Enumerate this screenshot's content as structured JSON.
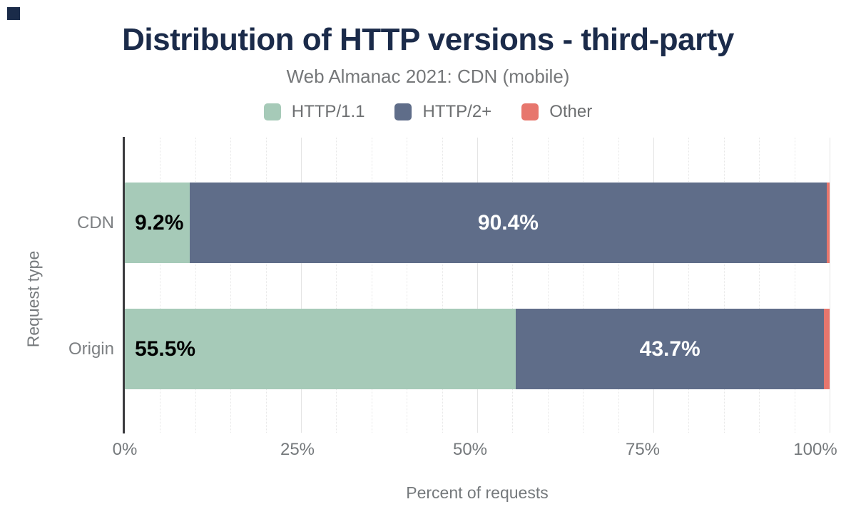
{
  "corner_mark": {
    "color": "#1a2b49"
  },
  "header": {
    "title": "Distribution of HTTP versions - third-party",
    "subtitle": "Web Almanac 2021: CDN (mobile)",
    "title_color": "#1b2b4a",
    "subtitle_color": "#757779"
  },
  "legend": {
    "text_color": "#6d6f71"
  },
  "chart_data": {
    "type": "bar",
    "orientation": "horizontal",
    "stacked": true,
    "title": "Distribution of HTTP versions - third-party",
    "subtitle": "Web Almanac 2021: CDN (mobile)",
    "categories": [
      "CDN",
      "Origin"
    ],
    "series": [
      {
        "name": "HTTP/1.1",
        "color": "#a6cab8",
        "values": [
          9.2,
          55.5
        ],
        "label_color": "#000000",
        "label_align": "left"
      },
      {
        "name": "HTTP/2+",
        "color": "#5f6d89",
        "values": [
          90.4,
          43.7
        ],
        "label_color": "#ffffff",
        "label_align": "center"
      },
      {
        "name": "Other",
        "color": "#e7766d",
        "values": [
          0.4,
          0.8
        ],
        "label_color": "#ffffff",
        "label_align": "center"
      }
    ],
    "xlabel": "Percent of requests",
    "ylabel": "Request type",
    "xlim": [
      0,
      100
    ],
    "x_ticks": [
      {
        "value": 0,
        "label": "0%"
      },
      {
        "value": 25,
        "label": "25%"
      },
      {
        "value": 50,
        "label": "50%"
      },
      {
        "value": 75,
        "label": "75%"
      },
      {
        "value": 100,
        "label": "100%"
      }
    ],
    "grid": {
      "minor_step": 5,
      "major_step": 25,
      "on": true
    },
    "legend_position": "top",
    "value_suffix": "%",
    "min_label_pct": 5
  }
}
